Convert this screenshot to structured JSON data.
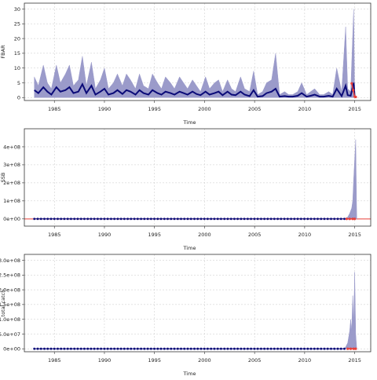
{
  "chart_data": [
    {
      "type": "area",
      "xlabel": "Time",
      "ylabel": "FBAR",
      "xlim": [
        1982,
        2016.6
      ],
      "ylim": [
        -1,
        32
      ],
      "xticks": [
        1985,
        1990,
        1995,
        2000,
        2005,
        2010,
        2015
      ],
      "xtick_labels": [
        "1985",
        "1990",
        "1995",
        "2000",
        "2005",
        "2010",
        "2015"
      ],
      "yticks": [
        0,
        5,
        10,
        15,
        20,
        25,
        30
      ],
      "ytick_labels": [
        "0",
        "5",
        "10",
        "15",
        "20",
        "25",
        "30"
      ],
      "grid": true,
      "series": [
        {
          "role": "upper-bound",
          "color": "#9696c8",
          "x": [
            1983.0,
            1983.4,
            1983.9,
            1984.3,
            1984.7,
            1985.2,
            1985.6,
            1986.1,
            1986.5,
            1986.9,
            1987.4,
            1987.8,
            1988.2,
            1988.7,
            1989.1,
            1989.6,
            1990.0,
            1990.4,
            1990.9,
            1991.3,
            1991.8,
            1992.2,
            1992.6,
            1993.1,
            1993.5,
            1993.9,
            1994.4,
            1994.8,
            1995.3,
            1995.7,
            1996.1,
            1996.6,
            1997.0,
            1997.5,
            1997.9,
            1998.3,
            1998.8,
            1999.2,
            1999.6,
            2000.1,
            2000.5,
            2001.0,
            2001.4,
            2001.8,
            2002.3,
            2002.7,
            2003.1,
            2003.6,
            2004.0,
            2004.5,
            2004.9,
            2005.3,
            2005.8,
            2006.2,
            2006.7,
            2007.1,
            2007.5,
            2008.0,
            2008.4,
            2008.8,
            2009.3,
            2009.7,
            2010.2,
            2010.6,
            2011.0,
            2011.5,
            2011.9,
            2012.4,
            2012.8,
            2013.2,
            2013.7,
            2014.1,
            2014.3,
            2014.6,
            2014.9,
            2015.0
          ],
          "values": [
            7,
            4,
            11,
            5,
            3,
            11,
            5,
            8,
            11,
            4,
            6,
            14,
            4,
            12,
            3,
            6,
            10,
            3,
            5,
            8,
            4,
            8,
            6,
            3,
            8,
            4,
            3,
            8,
            5,
            3,
            7,
            5,
            3,
            7,
            5,
            3,
            6,
            4,
            2,
            7,
            3,
            5,
            6,
            2,
            6,
            3,
            2,
            7,
            3,
            2,
            9,
            1,
            2,
            5,
            6,
            15,
            1,
            2,
            1,
            1,
            2,
            5,
            1,
            2,
            3,
            1,
            1,
            2,
            1,
            10,
            2,
            24,
            3,
            2,
            30,
            0.5
          ]
        },
        {
          "role": "median",
          "color": "#0a0a78",
          "x": [
            1983.0,
            1983.4,
            1983.9,
            1984.3,
            1984.7,
            1985.2,
            1985.6,
            1986.1,
            1986.5,
            1986.9,
            1987.4,
            1987.8,
            1988.2,
            1988.7,
            1989.1,
            1989.6,
            1990.0,
            1990.4,
            1990.9,
            1991.3,
            1991.8,
            1992.2,
            1992.6,
            1993.1,
            1993.5,
            1993.9,
            1994.4,
            1994.8,
            1995.3,
            1995.7,
            1996.1,
            1996.6,
            1997.0,
            1997.5,
            1997.9,
            1998.3,
            1998.8,
            1999.2,
            1999.6,
            2000.1,
            2000.5,
            2001.0,
            2001.4,
            2001.8,
            2002.3,
            2002.7,
            2003.1,
            2003.6,
            2004.0,
            2004.5,
            2004.9,
            2005.3,
            2005.8,
            2006.2,
            2006.7,
            2007.1,
            2007.5,
            2008.0,
            2008.4,
            2008.8,
            2009.3,
            2009.7,
            2010.2,
            2010.6,
            2011.0,
            2011.5,
            2011.9,
            2012.4,
            2012.8,
            2013.2,
            2013.7,
            2014.1,
            2014.3,
            2014.6,
            2014.9,
            2015.0
          ],
          "values": [
            2.5,
            1.5,
            3.5,
            2,
            1,
            3.5,
            2,
            2.5,
            3.5,
            1.5,
            2,
            4.5,
            1.5,
            4,
            1,
            2,
            3,
            1,
            1.5,
            2.5,
            1.2,
            2.5,
            2,
            1,
            2.5,
            1.5,
            1,
            2.5,
            1.5,
            1,
            2,
            1.5,
            1,
            2,
            1.5,
            1,
            2,
            1.2,
            0.8,
            2,
            1,
            1.5,
            2,
            0.8,
            2,
            1,
            0.8,
            2,
            1,
            0.5,
            2.5,
            0.3,
            0.5,
            1.5,
            2,
            3,
            0.3,
            0.5,
            0.3,
            0.3,
            0.6,
            1.5,
            0.3,
            0.6,
            1,
            0.3,
            0.3,
            0.6,
            0.3,
            3,
            0.5,
            4,
            0.8,
            0.6,
            5,
            0.2
          ]
        },
        {
          "role": "highlight",
          "color": "#e8403a",
          "x": [
            2014.7,
            2014.85,
            2015.0,
            2015.1
          ],
          "values": [
            4.8,
            2.5,
            0.3,
            0.2
          ]
        }
      ]
    },
    {
      "type": "area",
      "xlabel": "Time",
      "ylabel": "SSB",
      "xlim": [
        1982,
        2016.6
      ],
      "ylim": [
        -40000000.0,
        500000000.0
      ],
      "xticks": [
        1985,
        1990,
        1995,
        2000,
        2005,
        2010,
        2015
      ],
      "xtick_labels": [
        "1985",
        "1990",
        "1995",
        "2000",
        "2005",
        "2010",
        "2015"
      ],
      "yticks": [
        0,
        100000000,
        200000000,
        300000000,
        400000000
      ],
      "ytick_labels": [
        "0e+00",
        "1e+08",
        "2e+08",
        "3e+08",
        "4e+08"
      ],
      "grid": true,
      "reference_line": {
        "y": 0,
        "color": "#e8403a"
      },
      "series": [
        {
          "role": "upper-bound",
          "color": "#9696c8",
          "x": [
            1983.0,
            2013.5,
            2014.0,
            2014.3,
            2014.5,
            2014.7,
            2014.8,
            2014.9,
            2015.0,
            2015.1,
            2015.2
          ],
          "values": [
            0,
            0,
            500000,
            10000000,
            30000000,
            60000000,
            100000000,
            220000000,
            330000000,
            440000000,
            0
          ]
        },
        {
          "role": "median",
          "color": "#0a0a78",
          "markers": true,
          "x_start": 1983.0,
          "x_end": 2014.0,
          "x_step": 0.333,
          "value": 0
        },
        {
          "role": "highlight",
          "color": "#e8403a",
          "markers": true,
          "x": [
            2014.2,
            2014.5,
            2014.8,
            2015.0
          ],
          "values": [
            0,
            0,
            0,
            0
          ]
        }
      ]
    },
    {
      "type": "area",
      "xlabel": "Time",
      "ylabel": "total.catch",
      "xlim": [
        1982,
        2016.6
      ],
      "ylim": [
        -10000000.0,
        320000000.0
      ],
      "xticks": [
        1985,
        1990,
        1995,
        2000,
        2005,
        2010,
        2015
      ],
      "xtick_labels": [
        "1985",
        "1990",
        "1995",
        "2000",
        "2005",
        "2010",
        "2015"
      ],
      "yticks": [
        0,
        50000000,
        100000000,
        150000000,
        200000000,
        250000000,
        300000000
      ],
      "ytick_labels": [
        "0e+00",
        "5.0e+07",
        "1.0e+08",
        "1.5e+08",
        "2.0e+08",
        "2.5e+08",
        "3.0e+08"
      ],
      "grid": true,
      "series": [
        {
          "role": "upper-bound",
          "color": "#9696c8",
          "x": [
            1983.0,
            2014.0,
            2014.3,
            2014.5,
            2014.6,
            2014.7,
            2014.8,
            2014.9,
            2015.0,
            2015.1,
            2015.2
          ],
          "values": [
            0,
            0,
            20000000,
            60000000,
            100000000,
            60000000,
            180000000,
            90000000,
            260000000,
            50000000,
            0
          ]
        },
        {
          "role": "median",
          "color": "#0a0a78",
          "markers": true,
          "x_start": 1983.0,
          "x_end": 2014.0,
          "x_step": 0.333,
          "value": 0
        },
        {
          "role": "highlight",
          "color": "#e8403a",
          "markers": true,
          "x": [
            2014.3,
            2014.6,
            2014.9,
            2015.1
          ],
          "values": [
            0,
            0,
            0,
            0
          ]
        }
      ]
    }
  ]
}
